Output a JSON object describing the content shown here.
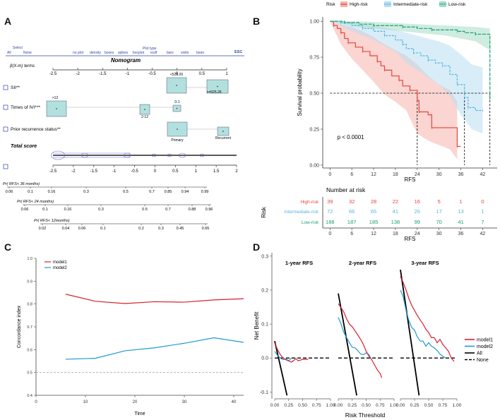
{
  "panels": {
    "a": "A",
    "b": "B",
    "c": "C",
    "d": "D"
  },
  "colors": {
    "high": "#e8433b",
    "intermediate": "#56b4e0",
    "low": "#1a9e74",
    "model1": "#d62031",
    "model2": "#1f9ad1",
    "all": "#000000",
    "nomo_blue": "#3344aa",
    "nomo_box": "#b2e0de"
  },
  "panel_a": {
    "select": "Select",
    "all": "All",
    "none": "None",
    "toolbar": [
      "no plot",
      "density",
      "boxes",
      "spikes",
      "bocplot",
      "ecdf",
      "bars",
      "violin",
      "bean"
    ],
    "plot_type": "Plot type",
    "esc": "ESC",
    "title": "Nomogram",
    "beta_label": "β(X-m) terms",
    "beta_ticks": [
      "-2.5",
      "-2",
      "-1.5",
      "-1",
      "-0.5",
      "0",
      "0.5",
      "1"
    ],
    "rows": [
      {
        "label": "SII**",
        "levels": [
          "<525.26",
          ">=525.26"
        ]
      },
      {
        "label": "Times of IVI***",
        "levels": [
          ">12",
          "2-12",
          "0-1"
        ]
      },
      {
        "label": "Prior recurrence status**",
        "levels": [
          "Primary",
          "Recurrent"
        ]
      }
    ],
    "total_label": "Total score",
    "total_ticks": [
      "-2.5",
      "-2",
      "-1.5",
      "-1",
      "-0.5",
      "0",
      "0.5",
      "1",
      "1.5",
      "2"
    ],
    "prob_rows": [
      {
        "label": "Pr( RFS< 36 months)",
        "ticks": [
          "0.06",
          "0.1",
          "0.16",
          "0.3",
          "0.5",
          "0.7",
          "0.85",
          "0.94",
          "0.99"
        ]
      },
      {
        "label": "Pr( RFS< 24 months)",
        "ticks": [
          "0.06",
          "0.1",
          "0.16",
          "0.3",
          "0.5",
          "0.7",
          "0.88",
          "0.96"
        ]
      },
      {
        "label": "Pr( RFS< 12months)",
        "ticks": [
          "0.02",
          "0.04",
          "0.06",
          "0.1",
          "0.2",
          "0.3",
          "0.45",
          "0.65"
        ]
      }
    ]
  },
  "chart_data": [
    {
      "panel": "B",
      "type": "line",
      "legend_title": "Risk",
      "legend": [
        "High-risk",
        "Intermediate-risk",
        "Low-risk"
      ],
      "xlabel": "RFS",
      "ylabel": "Survival probability",
      "xlim": [
        -2,
        46
      ],
      "ylim": [
        -0.02,
        1.03
      ],
      "xticks": [
        0,
        6,
        12,
        18,
        24,
        30,
        36,
        42
      ],
      "yticks": [
        "0.00",
        "0.25",
        "0.50",
        "0.75",
        "1.00"
      ],
      "pvalue": "p < 0.0001",
      "series": [
        {
          "name": "High-risk",
          "steps": [
            [
              0,
              1
            ],
            [
              1,
              0.97
            ],
            [
              2,
              0.95
            ],
            [
              3,
              0.92
            ],
            [
              4,
              0.88
            ],
            [
              5,
              0.85
            ],
            [
              7,
              0.82
            ],
            [
              9,
              0.79
            ],
            [
              11,
              0.76
            ],
            [
              13,
              0.72
            ],
            [
              14,
              0.69
            ],
            [
              15,
              0.66
            ],
            [
              17,
              0.62
            ],
            [
              19,
              0.59
            ],
            [
              20,
              0.55
            ],
            [
              22,
              0.52
            ],
            [
              24,
              0.45
            ],
            [
              24.5,
              0.37
            ],
            [
              27,
              0.35
            ],
            [
              28,
              0.26
            ],
            [
              33,
              0.26
            ],
            [
              35,
              0.13
            ],
            [
              36,
              0.13
            ]
          ],
          "band": [
            [
              0,
              1,
              1
            ],
            [
              3,
              0.98,
              0.84
            ],
            [
              6,
              0.96,
              0.74
            ],
            [
              9,
              0.93,
              0.66
            ],
            [
              12,
              0.89,
              0.58
            ],
            [
              15,
              0.84,
              0.49
            ],
            [
              18,
              0.8,
              0.44
            ],
            [
              21,
              0.76,
              0.38
            ],
            [
              24,
              0.7,
              0.22
            ],
            [
              27,
              0.62,
              0.17
            ],
            [
              30,
              0.56,
              0.14
            ],
            [
              33,
              0.52,
              0.11
            ],
            [
              35,
              0.44,
              0.04
            ]
          ]
        },
        {
          "name": "Intermediate-risk",
          "steps": [
            [
              0,
              1
            ],
            [
              3,
              0.99
            ],
            [
              6,
              0.97
            ],
            [
              9,
              0.95
            ],
            [
              12,
              0.93
            ],
            [
              15,
              0.9
            ],
            [
              18,
              0.87
            ],
            [
              20,
              0.84
            ],
            [
              21,
              0.81
            ],
            [
              23,
              0.78
            ],
            [
              25,
              0.76
            ],
            [
              27,
              0.73
            ],
            [
              29,
              0.71
            ],
            [
              31,
              0.69
            ],
            [
              33,
              0.63
            ],
            [
              35,
              0.56
            ],
            [
              37,
              0.47
            ],
            [
              38,
              0.4
            ],
            [
              40,
              0.38
            ],
            [
              42,
              0.38
            ]
          ],
          "band": [
            [
              0,
              1,
              1
            ],
            [
              6,
              0.99,
              0.93
            ],
            [
              12,
              0.97,
              0.87
            ],
            [
              18,
              0.94,
              0.79
            ],
            [
              21,
              0.92,
              0.71
            ],
            [
              24,
              0.9,
              0.66
            ],
            [
              27,
              0.88,
              0.61
            ],
            [
              30,
              0.86,
              0.56
            ],
            [
              33,
              0.83,
              0.48
            ],
            [
              36,
              0.77,
              0.35
            ],
            [
              39,
              0.7,
              0.25
            ],
            [
              42,
              0.68,
              0.22
            ]
          ]
        },
        {
          "name": "Low-risk",
          "steps": [
            [
              0,
              1
            ],
            [
              4,
              0.99
            ],
            [
              8,
              0.98
            ],
            [
              12,
              0.97
            ],
            [
              16,
              0.97
            ],
            [
              20,
              0.96
            ],
            [
              24,
              0.95
            ],
            [
              28,
              0.94
            ],
            [
              32,
              0.94
            ],
            [
              35,
              0.93
            ],
            [
              37,
              0.92
            ],
            [
              40,
              0.91
            ],
            [
              43,
              0.91
            ],
            [
              44,
              0.46
            ]
          ],
          "band": [
            [
              0,
              1,
              1
            ],
            [
              8,
              1,
              0.96
            ],
            [
              16,
              0.99,
              0.94
            ],
            [
              24,
              0.98,
              0.92
            ],
            [
              32,
              0.97,
              0.9
            ],
            [
              40,
              0.96,
              0.86
            ],
            [
              44,
              0.95,
              0.8
            ]
          ]
        }
      ],
      "median_refs": [
        24,
        37,
        44
      ],
      "risk_table": {
        "title": "Number at risk",
        "ylabel": "Risk",
        "rows": [
          {
            "name": "High-risk",
            "values": [
              39,
              32,
              28,
              22,
              16,
              5,
              1,
              0
            ]
          },
          {
            "name": "Intermediate-risk",
            "values": [
              72,
              66,
              65,
              41,
              26,
              17,
              13,
              1
            ]
          },
          {
            "name": "Low-risk",
            "values": [
              188,
              187,
              185,
              138,
              99,
              70,
              41,
              7
            ]
          }
        ],
        "xticks": [
          0,
          6,
          12,
          18,
          24,
          30,
          36,
          42
        ],
        "xlabel": "RFS"
      }
    },
    {
      "panel": "C",
      "type": "line",
      "xlabel": "Time",
      "ylabel": "Concordance index",
      "xlim": [
        0,
        42
      ],
      "ylim": [
        0.4,
        1.0
      ],
      "xticks": [
        0,
        10,
        20,
        30,
        40
      ],
      "yticks": [
        "0.4",
        "0.5",
        "0.6",
        "0.7",
        "0.8",
        "0.9",
        "1.0"
      ],
      "reference_line": 0.5,
      "legend": [
        "model1",
        "model2"
      ],
      "series": [
        {
          "name": "model1",
          "x": [
            6,
            12,
            18,
            24,
            30,
            36,
            42
          ],
          "y": [
            0.843,
            0.812,
            0.802,
            0.81,
            0.808,
            0.818,
            0.823
          ]
        },
        {
          "name": "model2",
          "x": [
            6,
            12,
            18,
            24,
            30,
            36,
            42
          ],
          "y": [
            0.558,
            0.562,
            0.595,
            0.608,
            0.628,
            0.652,
            0.632
          ]
        }
      ]
    },
    {
      "panel": "D",
      "type": "line",
      "xlabel": "Risk Threshold",
      "ylabel": "Net Benefit",
      "ylim": [
        -0.12,
        0.31
      ],
      "yticks": [
        "-0.1",
        "0.0",
        "0.1",
        "0.2",
        "0.3"
      ],
      "xticks": [
        "0.00",
        "0.25",
        "0.50",
        "0.75",
        "1.00"
      ],
      "legend": [
        "model1",
        "model2",
        "All",
        "None"
      ],
      "facets": [
        {
          "title": "1-year RFS",
          "model1": [
            [
              0,
              0.045
            ],
            [
              0.05,
              0.025
            ],
            [
              0.1,
              0.01
            ],
            [
              0.15,
              0.0
            ],
            [
              0.2,
              -0.005
            ],
            [
              0.3,
              -0.012
            ],
            [
              0.38,
              -0.002
            ],
            [
              0.42,
              -0.008
            ],
            [
              0.5,
              -0.004
            ],
            [
              0.6,
              -0.004
            ]
          ],
          "model2": [
            [
              0,
              0.02
            ],
            [
              0.05,
              0.008
            ],
            [
              0.1,
              0.0
            ],
            [
              0.15,
              -0.005
            ],
            [
              0.2,
              -0.002
            ],
            [
              0.25,
              -0.008
            ],
            [
              0.3,
              0.0
            ]
          ],
          "all": [
            [
              0,
              0.05
            ],
            [
              0.22,
              -0.11
            ]
          ]
        },
        {
          "title": "2-year RFS",
          "model1": [
            [
              0,
              0.16
            ],
            [
              0.05,
              0.148
            ],
            [
              0.1,
              0.135
            ],
            [
              0.15,
              0.115
            ],
            [
              0.2,
              0.1
            ],
            [
              0.25,
              0.092
            ],
            [
              0.3,
              0.08
            ],
            [
              0.35,
              0.068
            ],
            [
              0.4,
              0.055
            ],
            [
              0.45,
              0.04
            ],
            [
              0.5,
              0.02
            ],
            [
              0.55,
              0.005
            ],
            [
              0.6,
              -0.005
            ],
            [
              0.65,
              -0.02
            ],
            [
              0.7,
              -0.035
            ],
            [
              0.75,
              -0.045
            ],
            [
              0.78,
              -0.058
            ]
          ],
          "model2": [
            [
              0,
              0.12
            ],
            [
              0.05,
              0.1
            ],
            [
              0.1,
              0.075
            ],
            [
              0.15,
              0.06
            ],
            [
              0.2,
              0.045
            ],
            [
              0.25,
              0.032
            ],
            [
              0.3,
              0.03
            ],
            [
              0.35,
              0.022
            ],
            [
              0.4,
              0.012
            ],
            [
              0.45,
              0.01
            ],
            [
              0.5,
              0.015
            ],
            [
              0.55,
              0.01
            ],
            [
              0.58,
              0.0
            ]
          ],
          "all": [
            [
              0,
              0.19
            ],
            [
              0.33,
              -0.11
            ]
          ]
        },
        {
          "title": "3-year RFS",
          "model1": [
            [
              0,
              0.24
            ],
            [
              0.05,
              0.222
            ],
            [
              0.1,
              0.2
            ],
            [
              0.15,
              0.175
            ],
            [
              0.2,
              0.155
            ],
            [
              0.25,
              0.14
            ],
            [
              0.3,
              0.125
            ],
            [
              0.35,
              0.112
            ],
            [
              0.4,
              0.1
            ],
            [
              0.45,
              0.085
            ],
            [
              0.5,
              0.075
            ],
            [
              0.55,
              0.06
            ],
            [
              0.6,
              0.06
            ],
            [
              0.65,
              0.045
            ],
            [
              0.7,
              0.055
            ],
            [
              0.75,
              0.04
            ],
            [
              0.8,
              0.03
            ],
            [
              0.85,
              0.02
            ],
            [
              0.9,
              0.0
            ],
            [
              0.95,
              -0.01
            ]
          ],
          "model2": [
            [
              0,
              0.2
            ],
            [
              0.05,
              0.18
            ],
            [
              0.1,
              0.14
            ],
            [
              0.15,
              0.11
            ],
            [
              0.2,
              0.09
            ],
            [
              0.25,
              0.082
            ],
            [
              0.3,
              0.062
            ],
            [
              0.35,
              0.05
            ],
            [
              0.4,
              0.05
            ],
            [
              0.45,
              0.035
            ],
            [
              0.5,
              0.045
            ],
            [
              0.55,
              0.035
            ],
            [
              0.6,
              0.03
            ],
            [
              0.65,
              0.022
            ],
            [
              0.7,
              0.012
            ],
            [
              0.75,
              0.005
            ],
            [
              0.8,
              0.0
            ]
          ],
          "all": [
            [
              0,
              0.26
            ],
            [
              0.33,
              -0.11
            ]
          ]
        }
      ]
    }
  ]
}
